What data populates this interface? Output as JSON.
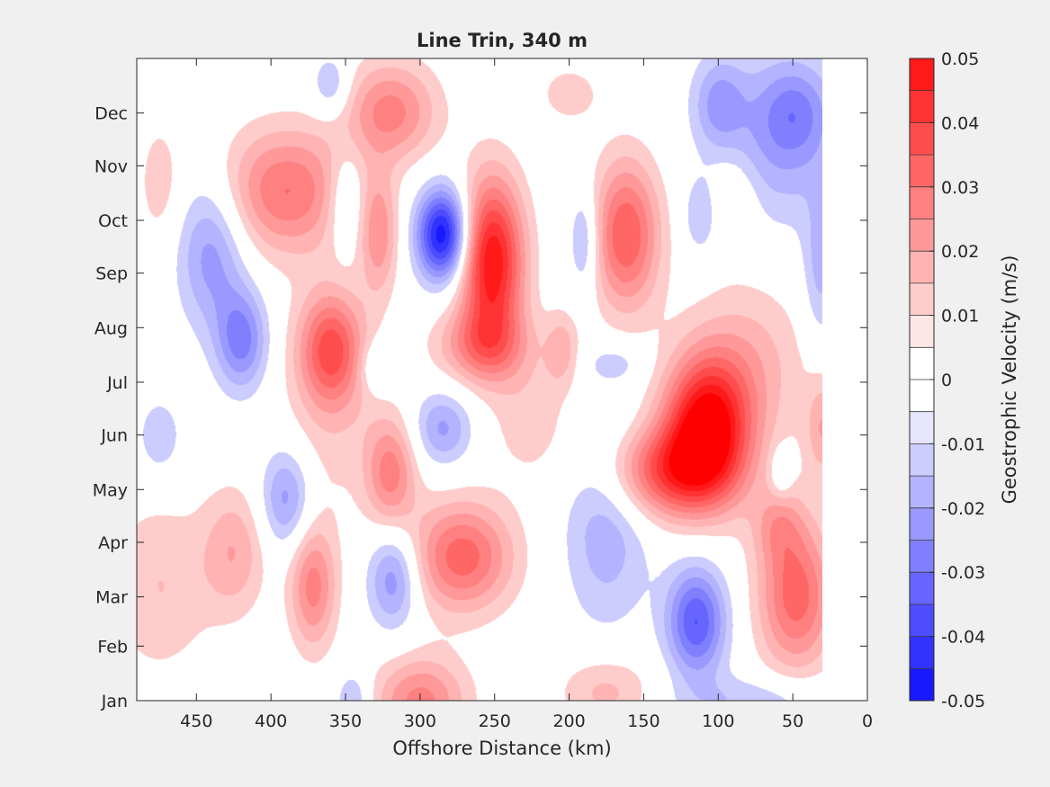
{
  "chart_data": {
    "type": "heatmap",
    "title": "Line Trin, 340 m",
    "xlabel": "Offshore Distance (km)",
    "ylabel": "",
    "xlim": [
      490,
      0
    ],
    "x_reversed": true,
    "x_ticks": [
      450,
      400,
      350,
      300,
      250,
      200,
      150,
      100,
      50,
      0
    ],
    "ylim": [
      0,
      365
    ],
    "y_ticks": [
      {
        "label": "Jan",
        "day": 0
      },
      {
        "label": "Feb",
        "day": 31
      },
      {
        "label": "Mar",
        "day": 59
      },
      {
        "label": "Apr",
        "day": 90
      },
      {
        "label": "May",
        "day": 120
      },
      {
        "label": "Jun",
        "day": 151
      },
      {
        "label": "Jul",
        "day": 181
      },
      {
        "label": "Aug",
        "day": 212
      },
      {
        "label": "Sep",
        "day": 243
      },
      {
        "label": "Oct",
        "day": 273
      },
      {
        "label": "Nov",
        "day": 304
      },
      {
        "label": "Dec",
        "day": 334
      }
    ],
    "colorbar": {
      "label": "Geostrophic Velocity (m/s)",
      "min": -0.05,
      "max": 0.05,
      "tick_labels": [
        "0.05",
        "0.04",
        "0.03",
        "0.02",
        "0.01",
        "0",
        "-0.01",
        "-0.02",
        "-0.03",
        "-0.04",
        "-0.05"
      ],
      "levels": [
        0.05,
        0.045,
        0.04,
        0.035,
        0.03,
        0.025,
        0.02,
        0.015,
        0.01,
        0.005,
        0,
        -0.005,
        -0.01,
        -0.015,
        -0.02,
        -0.025,
        -0.03,
        -0.035,
        -0.04,
        -0.045,
        -0.05
      ],
      "positive_color": "#ff0000",
      "negative_color": "#0000ff",
      "zero_color": "#ffffff"
    },
    "data_extent_x": [
      490,
      30
    ],
    "features": [
      {
        "x": 285,
        "day": 265,
        "sx": 12,
        "sy": 18,
        "v": -0.045
      },
      {
        "x": 252,
        "day": 250,
        "sx": 15,
        "sy": 33,
        "v": 0.045
      },
      {
        "x": 258,
        "day": 202,
        "sx": 22,
        "sy": 15,
        "v": 0.02
      },
      {
        "x": 320,
        "day": 335,
        "sx": 22,
        "sy": 20,
        "v": 0.022
      },
      {
        "x": 360,
        "day": 350,
        "sx": 9,
        "sy": 12,
        "v": -0.012
      },
      {
        "x": 390,
        "day": 290,
        "sx": 30,
        "sy": 25,
        "v": 0.025
      },
      {
        "x": 360,
        "day": 200,
        "sx": 15,
        "sy": 22,
        "v": 0.028
      },
      {
        "x": 328,
        "day": 265,
        "sx": 9,
        "sy": 24,
        "v": 0.018
      },
      {
        "x": 350,
        "day": 285,
        "sx": 9,
        "sy": 20,
        "v": -0.012
      },
      {
        "x": 440,
        "day": 255,
        "sx": 16,
        "sy": 30,
        "v": -0.018
      },
      {
        "x": 420,
        "day": 205,
        "sx": 12,
        "sy": 20,
        "v": -0.022
      },
      {
        "x": 162,
        "day": 265,
        "sx": 16,
        "sy": 30,
        "v": 0.03
      },
      {
        "x": 190,
        "day": 262,
        "sx": 7,
        "sy": 20,
        "v": -0.014
      },
      {
        "x": 205,
        "day": 200,
        "sx": 8,
        "sy": 15,
        "v": 0.012
      },
      {
        "x": 108,
        "day": 155,
        "sx": 20,
        "sy": 28,
        "v": 0.048
      },
      {
        "x": 135,
        "day": 130,
        "sx": 28,
        "sy": 18,
        "v": 0.03
      },
      {
        "x": 80,
        "day": 190,
        "sx": 28,
        "sy": 35,
        "v": 0.012
      },
      {
        "x": 60,
        "day": 320,
        "sx": 30,
        "sy": 35,
        "v": -0.015
      },
      {
        "x": 48,
        "day": 335,
        "sx": 16,
        "sy": 18,
        "v": -0.012
      },
      {
        "x": 32,
        "day": 245,
        "sx": 8,
        "sy": 30,
        "v": -0.012
      },
      {
        "x": 112,
        "day": 275,
        "sx": 8,
        "sy": 15,
        "v": -0.01
      },
      {
        "x": 100,
        "day": 340,
        "sx": 12,
        "sy": 18,
        "v": -0.014
      },
      {
        "x": 115,
        "day": 45,
        "sx": 14,
        "sy": 22,
        "v": -0.03
      },
      {
        "x": 175,
        "day": 100,
        "sx": 20,
        "sy": 40,
        "v": -0.014
      },
      {
        "x": 48,
        "day": 60,
        "sx": 18,
        "sy": 30,
        "v": 0.028
      },
      {
        "x": 60,
        "day": 100,
        "sx": 12,
        "sy": 15,
        "v": 0.012
      },
      {
        "x": 272,
        "day": 82,
        "sx": 24,
        "sy": 22,
        "v": 0.028
      },
      {
        "x": 285,
        "day": 155,
        "sx": 14,
        "sy": 15,
        "v": -0.016
      },
      {
        "x": 320,
        "day": 130,
        "sx": 12,
        "sy": 22,
        "v": 0.022
      },
      {
        "x": 318,
        "day": 70,
        "sx": 12,
        "sy": 20,
        "v": -0.02
      },
      {
        "x": 372,
        "day": 65,
        "sx": 11,
        "sy": 25,
        "v": 0.022
      },
      {
        "x": 425,
        "day": 85,
        "sx": 15,
        "sy": 25,
        "v": 0.014
      },
      {
        "x": 475,
        "day": 65,
        "sx": 25,
        "sy": 35,
        "v": 0.01
      },
      {
        "x": 300,
        "day": 0,
        "sx": 22,
        "sy": 18,
        "v": 0.022
      },
      {
        "x": 345,
        "day": 0,
        "sx": 8,
        "sy": 12,
        "v": -0.012
      },
      {
        "x": 175,
        "day": 5,
        "sx": 22,
        "sy": 15,
        "v": 0.012
      },
      {
        "x": 75,
        "day": 0,
        "sx": 38,
        "sy": 10,
        "v": -0.01
      },
      {
        "x": 390,
        "day": 115,
        "sx": 12,
        "sy": 20,
        "v": -0.018
      },
      {
        "x": 475,
        "day": 150,
        "sx": 10,
        "sy": 15,
        "v": -0.01
      },
      {
        "x": 475,
        "day": 295,
        "sx": 10,
        "sy": 25,
        "v": 0.008
      },
      {
        "x": 360,
        "day": 170,
        "sx": 22,
        "sy": 45,
        "v": 0.008
      },
      {
        "x": 225,
        "day": 160,
        "sx": 20,
        "sy": 25,
        "v": 0.008
      },
      {
        "x": 30,
        "day": 155,
        "sx": 8,
        "sy": 20,
        "v": 0.014
      },
      {
        "x": 90,
        "day": 285,
        "sx": 12,
        "sy": 20,
        "v": 0.008
      },
      {
        "x": 200,
        "day": 345,
        "sx": 15,
        "sy": 12,
        "v": 0.008
      },
      {
        "x": 330,
        "day": 190,
        "sx": 8,
        "sy": 10,
        "v": -0.01
      },
      {
        "x": 170,
        "day": 192,
        "sx": 14,
        "sy": 8,
        "v": -0.008
      },
      {
        "x": 58,
        "day": 130,
        "sx": 5,
        "sy": 10,
        "v": -0.01
      }
    ]
  }
}
